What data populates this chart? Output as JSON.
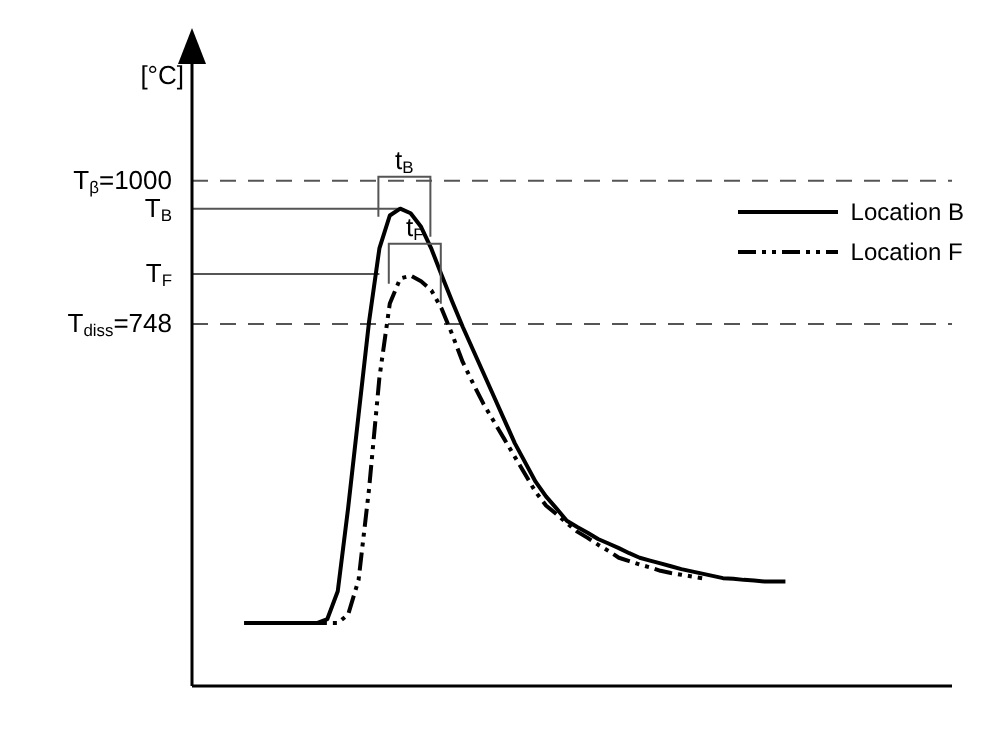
{
  "chart_data": {
    "type": "line",
    "ylabel": "[°C]",
    "categories": [
      null,
      null,
      null,
      null,
      null,
      null,
      null,
      null,
      null,
      null,
      null,
      null,
      null,
      null,
      null,
      null,
      null,
      null,
      null,
      null,
      null,
      null,
      null,
      null,
      null,
      null,
      null,
      null,
      null,
      null,
      null,
      null,
      null,
      null,
      null,
      null,
      null,
      null,
      null,
      null,
      null,
      null,
      null,
      null,
      null,
      null,
      null,
      null,
      null,
      null,
      null,
      null,
      null
    ],
    "ylim": [
      110,
      1220
    ],
    "yticks": [
      {
        "value": 1000,
        "label": "T$_{β}$=1000"
      },
      {
        "value": 951,
        "label": "T$_{B}$"
      },
      {
        "value": 836,
        "label": "T$_{F}$"
      },
      {
        "value": 748,
        "label": "T$_{diss}$=748"
      }
    ],
    "tick_labels": "y",
    "grid": false,
    "marker": "none",
    "legend": "right",
    "series": [
      {
        "name": "Location B",
        "color": "#000000",
        "line_style": "solid",
        "values": [
          221,
          221,
          221,
          221,
          221,
          221,
          221,
          221,
          228,
          277,
          424,
          588,
          751,
          881,
          939,
          951,
          943,
          919,
          880,
          833,
          787,
          743,
          702,
          661,
          620,
          579,
          538,
          504,
          470,
          444,
          423,
          401,
          390,
          380,
          369,
          361,
          353,
          344,
          336,
          331,
          326,
          321,
          316,
          312,
          308,
          304,
          300,
          299,
          297,
          296,
          294,
          294,
          294
        ]
      },
      {
        "name": "Location F",
        "color": "#000000",
        "line_style": "dashed",
        "values": [
          null,
          null,
          221,
          221,
          221,
          221,
          221,
          221,
          221,
          221,
          236,
          297,
          456,
          653,
          784,
          828,
          833,
          823,
          807,
          774,
          729,
          681,
          643,
          607,
          576,
          545,
          514,
          483,
          452,
          428,
          413,
          397,
          382,
          371,
          359,
          348,
          336,
          330,
          324,
          319,
          313,
          309,
          306,
          303,
          300,
          null,
          null,
          null,
          null,
          null,
          null,
          null,
          null
        ]
      }
    ],
    "ref_lines": [
      {
        "axis": "y",
        "value": 1000,
        "label": null,
        "color": "#555555",
        "line_style": "dashed"
      },
      {
        "axis": "y",
        "value": 748,
        "label": null,
        "color": "#555555",
        "line_style": "dashed"
      },
      {
        "axis": "y",
        "value": 951,
        "label": null,
        "color": "#555555",
        "line_style": "solid"
      },
      {
        "axis": "y",
        "value": 836,
        "label": null,
        "color": "#555555",
        "line_style": "solid"
      }
    ],
    "annotations": [
      "t$_{B}$",
      "t$_{F}$"
    ]
  }
}
